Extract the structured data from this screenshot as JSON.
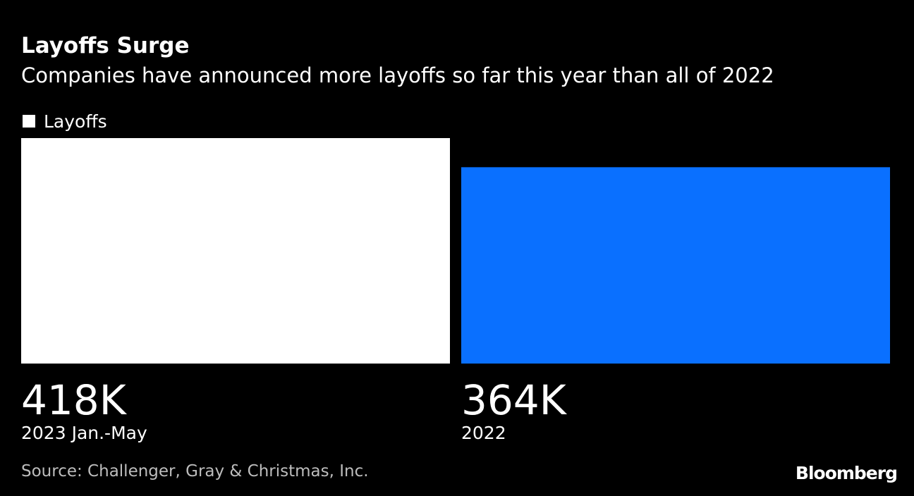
{
  "chart_data": {
    "type": "bar",
    "title": "Layoffs Surge",
    "subtitle": "Companies have announced more layoffs so far this year than all of 2022",
    "categories": [
      "2023 Jan.-May",
      "2022"
    ],
    "series": [
      {
        "name": "Layoffs",
        "color": "#ffffff",
        "point_colors": [
          "#ffffff",
          "#0a70ff"
        ],
        "values": [
          418,
          364
        ],
        "value_labels": [
          "418K",
          "364K"
        ]
      }
    ],
    "source": "Source: Challenger, Gray & Christmas, Inc.",
    "credit": "Bloomberg"
  }
}
